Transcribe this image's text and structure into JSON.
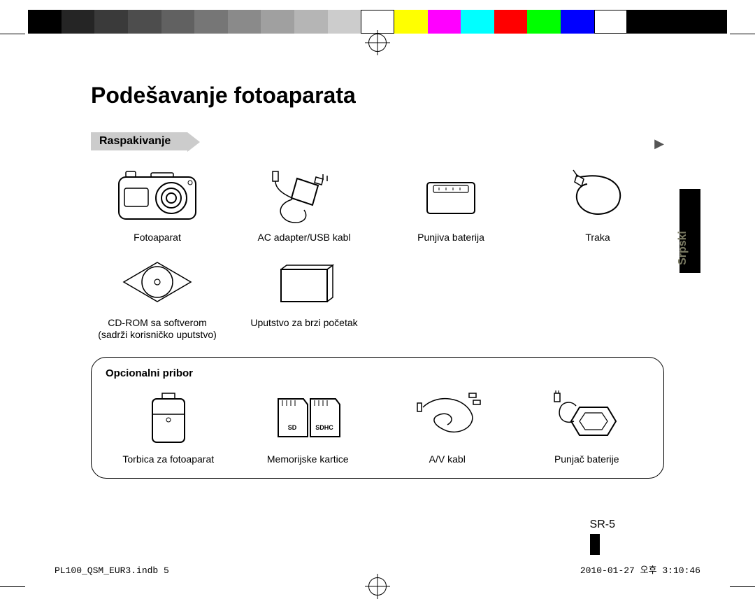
{
  "colorbar": [
    "#000000",
    "#252525",
    "#3a3a3a",
    "#4d4d4d",
    "#616161",
    "#767676",
    "#8a8a8a",
    "#a0a0a0",
    "#b5b5b5",
    "#cccccc",
    "#ffffff",
    "#ffff00",
    "#ff00ff",
    "#00ffff",
    "#ff0000",
    "#00ff00",
    "#0000ff",
    "#ffffff",
    "#000000",
    "#000000",
    "#000000"
  ],
  "title": "Podešavanje fotoaparata",
  "section1_title": "Raspakivanje",
  "included": [
    {
      "label": "Fotoaparat"
    },
    {
      "label": "AC adapter/USB kabl"
    },
    {
      "label": "Punjiva baterija"
    },
    {
      "label": "Traka"
    }
  ],
  "included2": [
    {
      "label": "CD-ROM sa softverom",
      "sublabel": "(sadrži korisničko uputstvo)"
    },
    {
      "label": "Uputstvo za brzi početak"
    }
  ],
  "optional_title": "Opcionalni pribor",
  "optional": [
    {
      "label": "Torbica za fotoaparat"
    },
    {
      "label": "Memorijske kartice"
    },
    {
      "label": "A/V kabl"
    },
    {
      "label": "Punjač baterije"
    }
  ],
  "sd_labels": {
    "sd": "SD",
    "sdhc": "SDHC"
  },
  "language": "Srpski",
  "page_number": "SR-5",
  "footer_left": "PL100_QSM_EUR3.indb   5",
  "footer_right": "2010-01-27   오후 3:10:46"
}
